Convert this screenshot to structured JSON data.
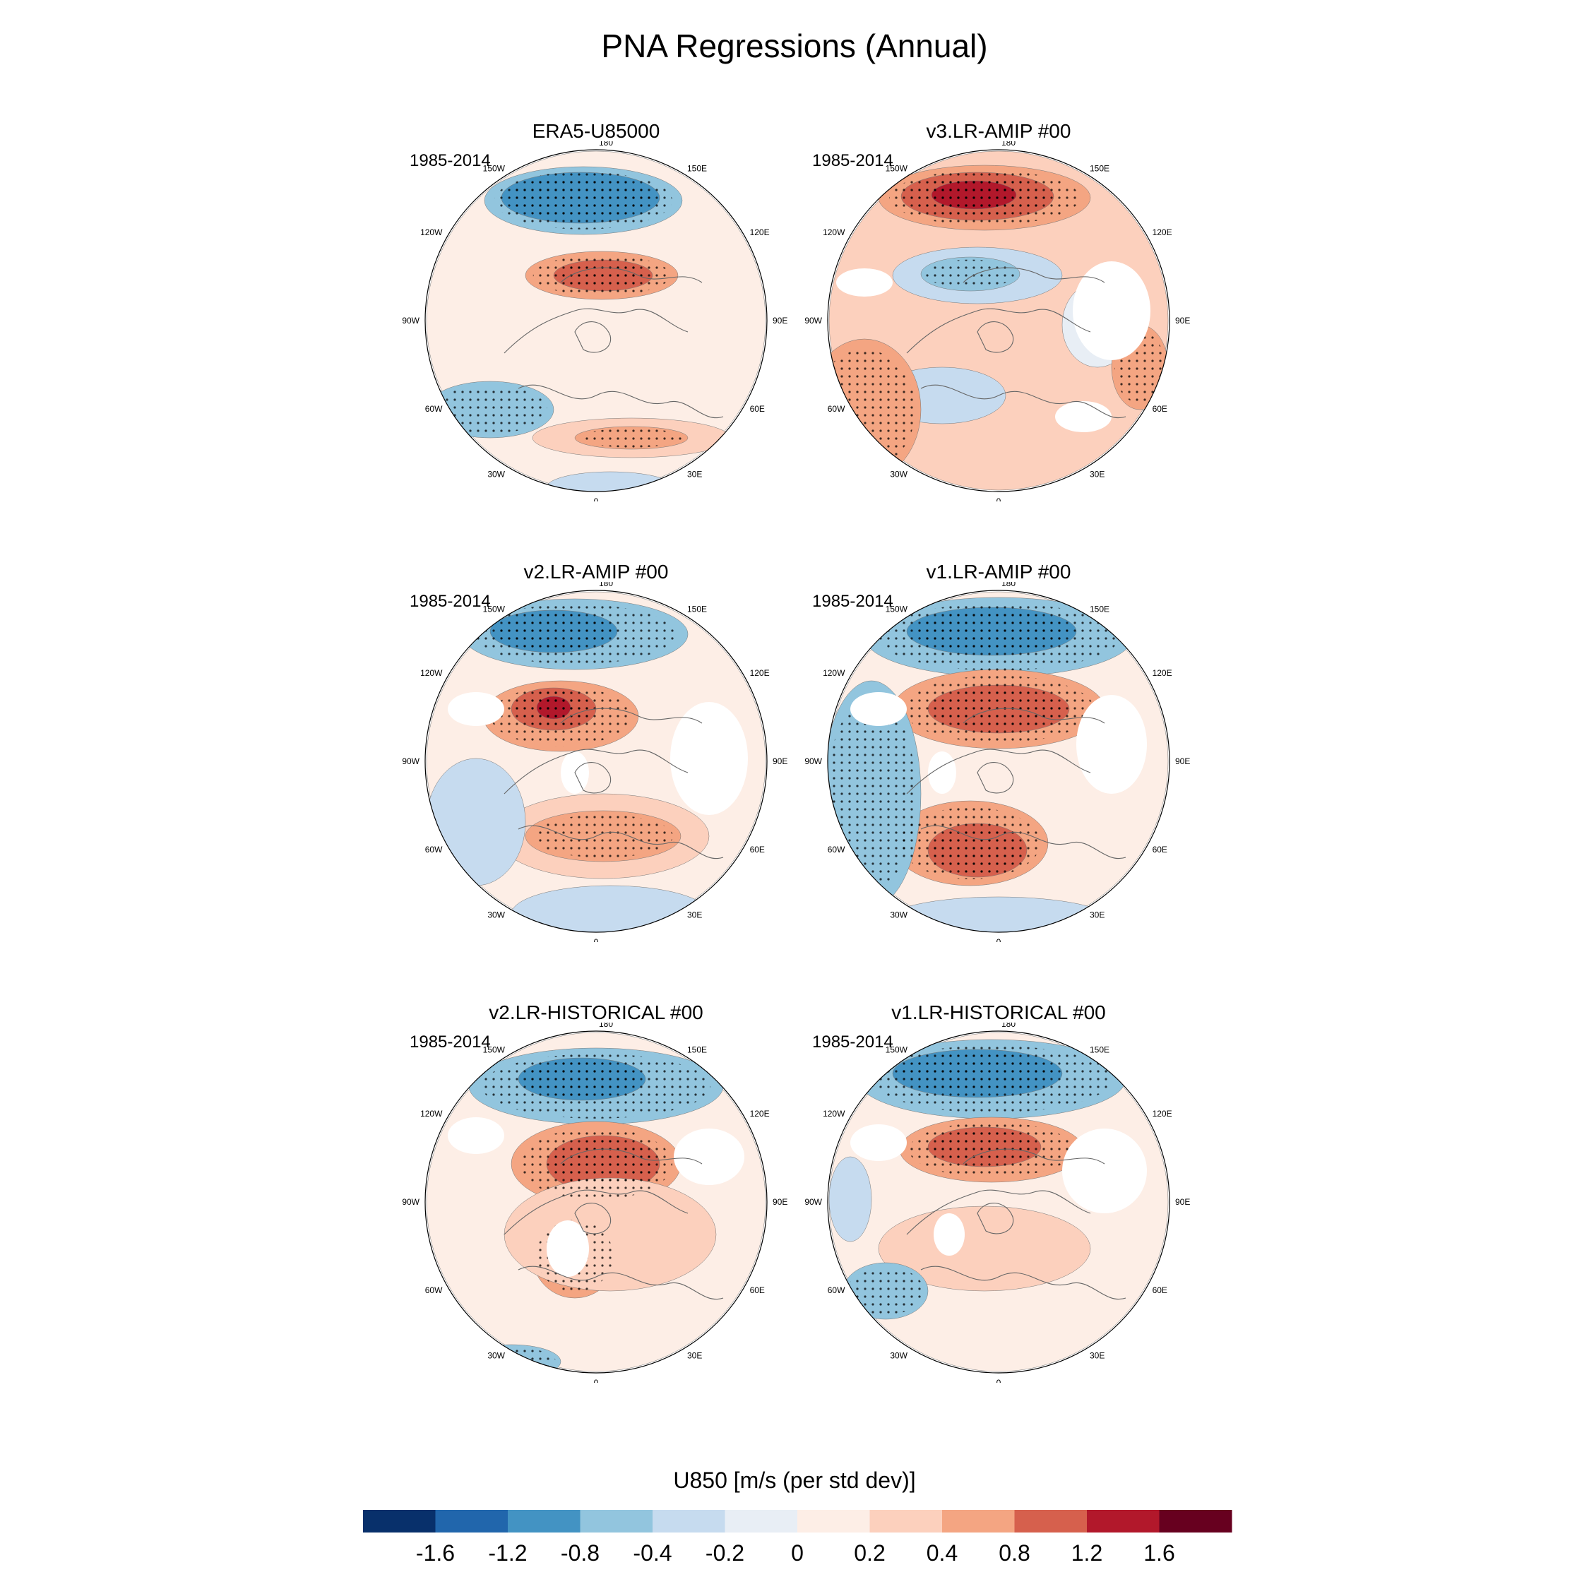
{
  "title": "PNA Regressions (Annual)",
  "panels": [
    {
      "title": "ERA5-U85000",
      "period": "1985-2014",
      "variant": 0
    },
    {
      "title": "v3.LR-AMIP  #00",
      "period": "1985-2014",
      "variant": 1
    },
    {
      "title": "v2.LR-AMIP  #00",
      "period": "1985-2014",
      "variant": 2
    },
    {
      "title": "v1.LR-AMIP  #00",
      "period": "1985-2014",
      "variant": 3
    },
    {
      "title": "v2.LR-HISTORICAL  #00",
      "period": "1985-2014",
      "variant": 4
    },
    {
      "title": "v1.LR-HISTORICAL  #00",
      "period": "1985-2014",
      "variant": 5
    }
  ],
  "longitude_labels": [
    "180",
    "150E",
    "120E",
    "90E",
    "60E",
    "30E",
    "0",
    "30W",
    "60W",
    "90W",
    "120W",
    "150W"
  ],
  "colorbar": {
    "title": "U850 [m/s (per std dev)]",
    "colors": [
      "#08306b",
      "#2166ac",
      "#4393c3",
      "#92c5de",
      "#c6dbef",
      "#e8eef5",
      "#fdeee6",
      "#fcd0bd",
      "#f4a582",
      "#d6604d",
      "#b2182b",
      "#67001f"
    ],
    "tick_labels": [
      "-1.6",
      "-1.2",
      "-0.8",
      "-0.4",
      "-0.2",
      "0",
      "0.2",
      "0.4",
      "0.8",
      "1.2",
      "1.6"
    ]
  }
}
